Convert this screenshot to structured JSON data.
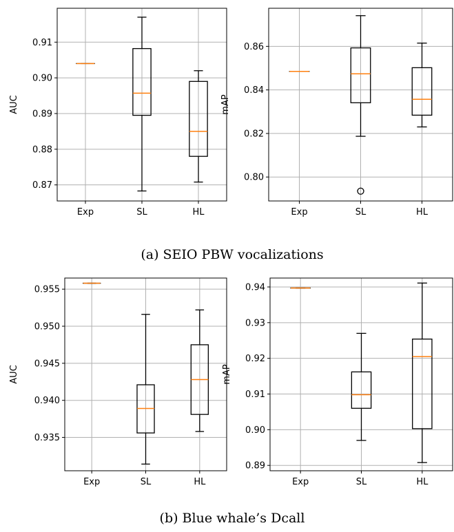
{
  "captions": {
    "a": "(a) SEIO PBW vocalizations",
    "b": "(b) Blue whale’s Dcall"
  },
  "colors": {
    "median": "#ff7f0e",
    "box": "#000000",
    "grid": "#b0b0b0"
  },
  "chart_data": [
    {
      "type": "boxplot",
      "panel": "a-left",
      "categories": [
        "Exp",
        "SL",
        "HL"
      ],
      "xlabel": "",
      "ylabel": "AUC",
      "ylim": [
        0.8655,
        0.9195
      ],
      "yticks": [
        0.87,
        0.88,
        0.89,
        0.9,
        0.91
      ],
      "ytick_labels": [
        "0.87",
        "0.88",
        "0.89",
        "0.90",
        "0.91"
      ],
      "grid": true,
      "boxes": [
        {
          "category": "Exp",
          "whislo": 0.904,
          "q1": 0.904,
          "med": 0.904,
          "q3": 0.904,
          "whishi": 0.904,
          "fliers": []
        },
        {
          "category": "SL",
          "whislo": 0.8683,
          "q1": 0.8895,
          "med": 0.8957,
          "q3": 0.9082,
          "whishi": 0.917,
          "fliers": []
        },
        {
          "category": "HL",
          "whislo": 0.8708,
          "q1": 0.878,
          "med": 0.885,
          "q3": 0.899,
          "whishi": 0.902,
          "fliers": []
        }
      ]
    },
    {
      "type": "boxplot",
      "panel": "a-right",
      "categories": [
        "Exp",
        "SL",
        "HL"
      ],
      "xlabel": "",
      "ylabel": "mAP",
      "ylim": [
        0.789,
        0.8775
      ],
      "yticks": [
        0.8,
        0.82,
        0.84,
        0.86
      ],
      "ytick_labels": [
        "0.80",
        "0.82",
        "0.84",
        "0.86"
      ],
      "grid": true,
      "boxes": [
        {
          "category": "Exp",
          "whislo": 0.8485,
          "q1": 0.8485,
          "med": 0.8485,
          "q3": 0.8485,
          "whishi": 0.8485,
          "fliers": []
        },
        {
          "category": "SL",
          "whislo": 0.8187,
          "q1": 0.8341,
          "med": 0.8474,
          "q3": 0.8593,
          "whishi": 0.8741,
          "fliers": [
            0.7935
          ]
        },
        {
          "category": "HL",
          "whislo": 0.823,
          "q1": 0.8284,
          "med": 0.8357,
          "q3": 0.8502,
          "whishi": 0.8615,
          "fliers": []
        }
      ]
    },
    {
      "type": "boxplot",
      "panel": "b-left",
      "categories": [
        "Exp",
        "SL",
        "HL"
      ],
      "xlabel": "",
      "ylabel": "AUC",
      "ylim": [
        0.9305,
        0.9565
      ],
      "yticks": [
        0.935,
        0.94,
        0.945,
        0.95,
        0.955
      ],
      "ytick_labels": [
        "0.935",
        "0.940",
        "0.945",
        "0.950",
        "0.955"
      ],
      "grid": true,
      "boxes": [
        {
          "category": "Exp",
          "whislo": 0.9558,
          "q1": 0.9558,
          "med": 0.9558,
          "q3": 0.9558,
          "whishi": 0.9558,
          "fliers": []
        },
        {
          "category": "SL",
          "whislo": 0.9314,
          "q1": 0.9356,
          "med": 0.9389,
          "q3": 0.9421,
          "whishi": 0.9516,
          "fliers": []
        },
        {
          "category": "HL",
          "whislo": 0.9358,
          "q1": 0.9381,
          "med": 0.9428,
          "q3": 0.9475,
          "whishi": 0.9522,
          "fliers": []
        }
      ]
    },
    {
      "type": "boxplot",
      "panel": "b-right",
      "categories": [
        "Exp",
        "SL",
        "HL"
      ],
      "xlabel": "",
      "ylabel": "mAP",
      "ylim": [
        0.8885,
        0.9425
      ],
      "yticks": [
        0.89,
        0.9,
        0.91,
        0.92,
        0.93,
        0.94
      ],
      "ytick_labels": [
        "0.89",
        "0.90",
        "0.91",
        "0.92",
        "0.93",
        "0.94"
      ],
      "grid": true,
      "boxes": [
        {
          "category": "Exp",
          "whislo": 0.9397,
          "q1": 0.9397,
          "med": 0.9397,
          "q3": 0.9397,
          "whishi": 0.9397,
          "fliers": []
        },
        {
          "category": "SL",
          "whislo": 0.897,
          "q1": 0.906,
          "med": 0.9098,
          "q3": 0.9162,
          "whishi": 0.927,
          "fliers": []
        },
        {
          "category": "HL",
          "whislo": 0.8908,
          "q1": 0.9003,
          "med": 0.9205,
          "q3": 0.9254,
          "whishi": 0.9411,
          "fliers": []
        }
      ]
    }
  ]
}
